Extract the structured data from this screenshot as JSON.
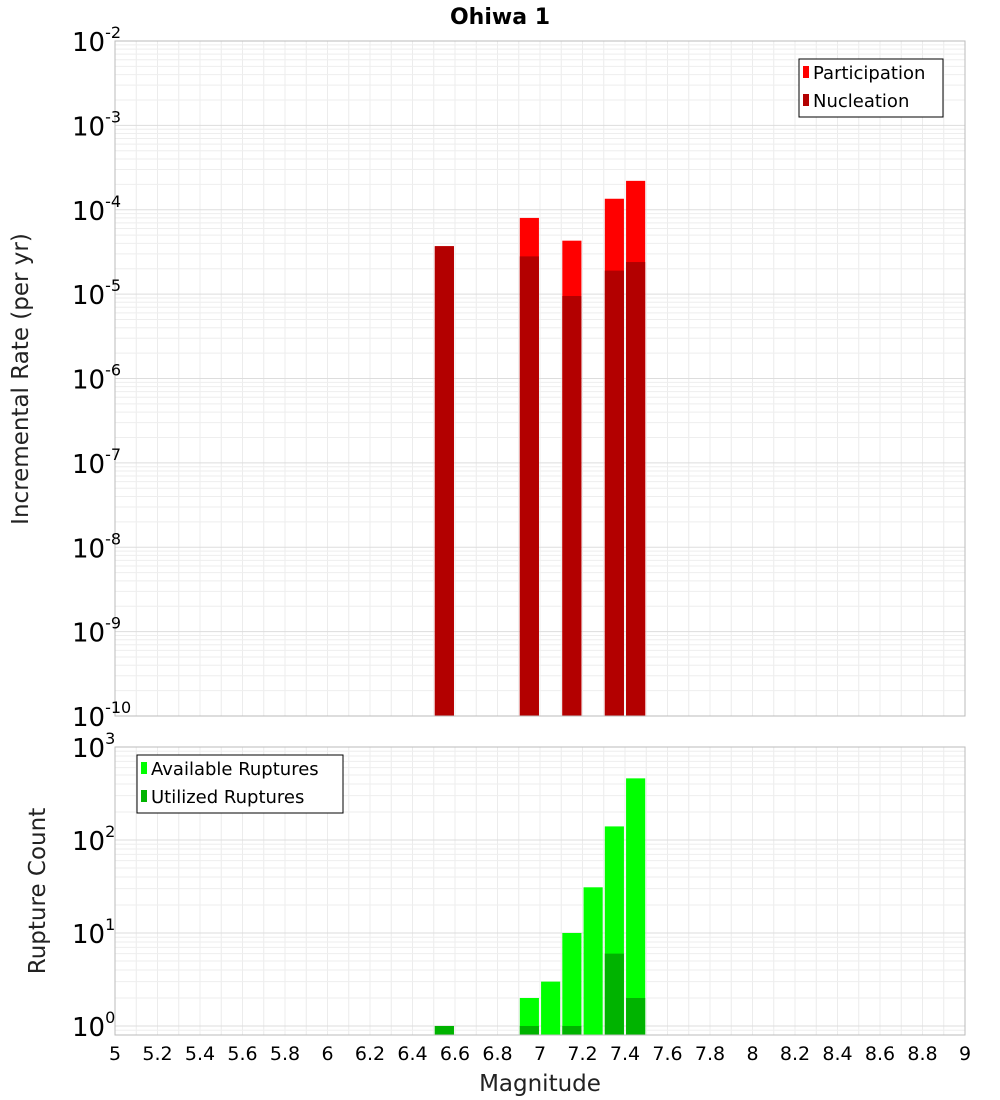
{
  "chart_data": [
    {
      "type": "bar",
      "title": "Ohiwa 1",
      "xlabel": "",
      "ylabel": "Incremental Rate (per yr)",
      "yscale": "log",
      "ylim_exp": [
        -10,
        -2
      ],
      "xlim": [
        5,
        9
      ],
      "bar_width": 0.09,
      "grid": true,
      "legend_position": "top-right",
      "x": [
        6.55,
        6.95,
        7.15,
        7.35,
        7.45
      ],
      "series": [
        {
          "name": "Participation",
          "color": "#ff0000",
          "values": [
            3.7e-05,
            8e-05,
            4.3e-05,
            0.000135,
            0.00022
          ]
        },
        {
          "name": "Nucleation",
          "color": "#b30000",
          "values": [
            3.7e-05,
            2.8e-05,
            9.5e-06,
            1.9e-05,
            2.4e-05
          ]
        }
      ]
    },
    {
      "type": "bar",
      "title": "",
      "xlabel": "Magnitude",
      "ylabel": "Rupture Count",
      "yscale": "log",
      "ylim_exp": [
        0,
        3
      ],
      "ybottom": 0.8,
      "xlim": [
        5,
        9
      ],
      "bar_width": 0.09,
      "grid": true,
      "legend_position": "top-left",
      "x": [
        6.55,
        6.95,
        7.05,
        7.15,
        7.25,
        7.35,
        7.45
      ],
      "series": [
        {
          "name": "Available Ruptures",
          "color": "#00ff00",
          "values": [
            1,
            2,
            3,
            10,
            31,
            140,
            460
          ]
        },
        {
          "name": "Utilized Ruptures",
          "color": "#00b300",
          "values": [
            1,
            1,
            0,
            1,
            0,
            6,
            2
          ]
        }
      ]
    }
  ],
  "x_ticks": [
    "5",
    "5.2",
    "5.4",
    "5.6",
    "5.8",
    "6",
    "6.2",
    "6.4",
    "6.6",
    "6.8",
    "7",
    "7.2",
    "7.4",
    "7.6",
    "7.8",
    "8",
    "8.2",
    "8.4",
    "8.6",
    "8.8",
    "9"
  ]
}
